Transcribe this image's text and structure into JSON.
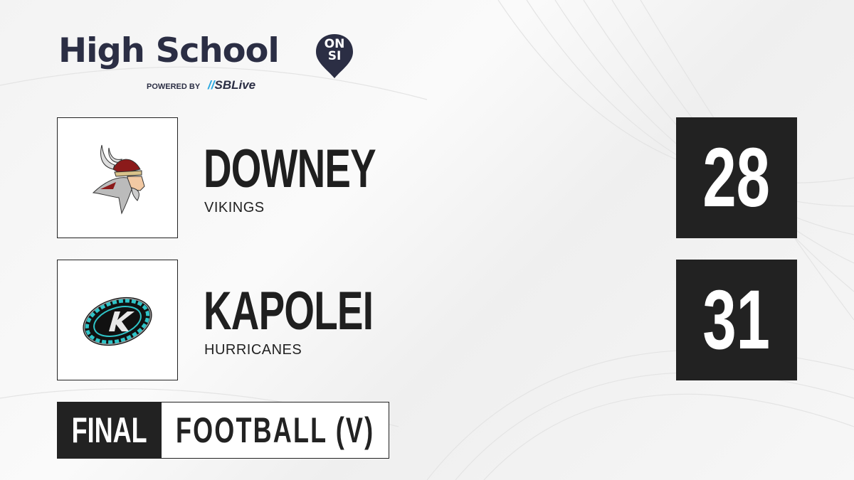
{
  "brand": {
    "title": "High School",
    "pin_top": "ON",
    "pin_bottom": "SI",
    "powered_by": "POWERED BY",
    "partner_s": "S",
    "partner_rest": "SBLive"
  },
  "teams": [
    {
      "name": "DOWNEY",
      "mascot": "VIKINGS",
      "score": "28",
      "logo": "viking-head"
    },
    {
      "name": "KAPOLEI",
      "mascot": "HURRICANES",
      "score": "31",
      "logo": "hurricane-k"
    }
  ],
  "status": {
    "label": "FINAL",
    "sport": "FOOTBALL (V)"
  },
  "colors": {
    "brand_navy": "#2b2e44",
    "sblive_blue": "#2aa8e0",
    "dark": "#222222",
    "viking_red": "#8b1a1a",
    "hurricane_teal": "#2ec4c8"
  }
}
